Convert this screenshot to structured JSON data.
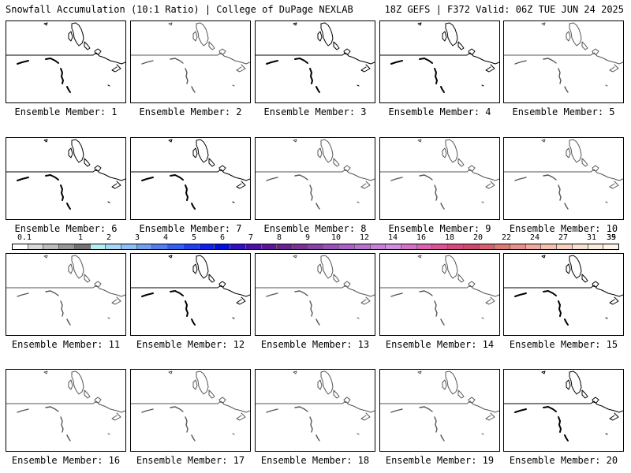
{
  "header": {
    "left": "Snowfall Accumulation (10:1 Ratio) | College of DuPage NEXLAB",
    "right": "18Z GEFS | F372 Valid: 06Z TUE JUN 24 2025"
  },
  "members": [
    {
      "label": "Ensemble Member: 1"
    },
    {
      "label": "Ensemble Member: 2"
    },
    {
      "label": "Ensemble Member: 3"
    },
    {
      "label": "Ensemble Member: 4"
    },
    {
      "label": "Ensemble Member: 5"
    },
    {
      "label": "Ensemble Member: 6"
    },
    {
      "label": "Ensemble Member: 7"
    },
    {
      "label": "Ensemble Member: 8"
    },
    {
      "label": "Ensemble Member: 9"
    },
    {
      "label": "Ensemble Member: 10"
    },
    {
      "label": "Ensemble Member: 11"
    },
    {
      "label": "Ensemble Member: 12"
    },
    {
      "label": "Ensemble Member: 13"
    },
    {
      "label": "Ensemble Member: 14"
    },
    {
      "label": "Ensemble Member: 15"
    },
    {
      "label": "Ensemble Member: 16"
    },
    {
      "label": "Ensemble Member: 17"
    },
    {
      "label": "Ensemble Member: 18"
    },
    {
      "label": "Ensemble Member: 19"
    },
    {
      "label": "Ensemble Member: 20"
    }
  ],
  "colorbar": {
    "labels": [
      "0.1",
      "1",
      "2",
      "3",
      "4",
      "5",
      "6",
      "7",
      "8",
      "9",
      "10",
      "12",
      "14",
      "16",
      "18",
      "20",
      "22",
      "24",
      "27",
      "31",
      "35",
      "39"
    ],
    "colors": [
      "#ffffff",
      "#d9d9d9",
      "#bdbdbd",
      "#969696",
      "#737373",
      "#b4f0f0",
      "#a8d8f8",
      "#8cc0f8",
      "#70a0f0",
      "#5080f0",
      "#3060f0",
      "#2040f0",
      "#1020f0",
      "#0010e0",
      "#3010c0",
      "#4a10a8",
      "#5a1898",
      "#6a2090",
      "#7a3098",
      "#8a40a8",
      "#9a50b8",
      "#aa60c8",
      "#ba70d0",
      "#c880d8",
      "#d090e0",
      "#d870c8",
      "#e060b0",
      "#e05098",
      "#d84880",
      "#d04870",
      "#d86070",
      "#e07878",
      "#e89090",
      "#f0a8a0",
      "#f4c0b0",
      "#f8d0c0",
      "#fae0d0",
      "#fcecdc",
      "#fff4e8"
    ]
  }
}
